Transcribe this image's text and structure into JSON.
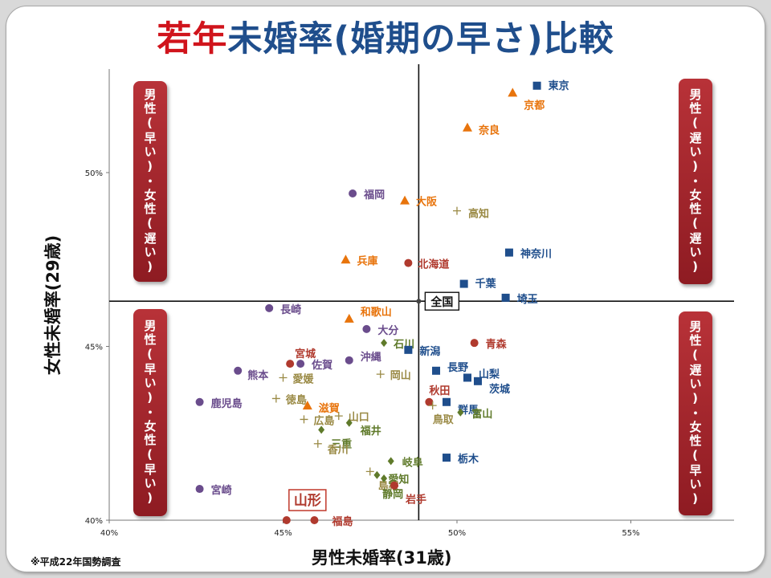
{
  "title": {
    "part1": "若年",
    "part2": "未婚率(婚期の早さ)比較"
  },
  "source": "※平成22年国勢調査",
  "quadrants": {
    "top_left": "男性(早い)・女性(遅い)",
    "top_right": "男性(遅い)・女性(遅い)",
    "bottom_left": "男性(早い)・女性(早い)",
    "bottom_right": "男性(遅い)・女性(早い)"
  },
  "highlight_label": "山形",
  "chart_data": {
    "type": "scatter",
    "xlabel": "男性未婚率(31歳)",
    "ylabel": "女性未婚率(29歳)",
    "xlim": [
      40,
      58
    ],
    "ylim": [
      40,
      53
    ],
    "x_ticks": [
      "40%",
      "45%",
      "50%",
      "55%"
    ],
    "y_ticks": [
      "40%",
      "45%",
      "50%"
    ],
    "reference": {
      "label": "全国",
      "x": 48.9,
      "y": 46.3
    },
    "colors": {
      "orange": "#e8740c",
      "navy": "#1f4e8c",
      "purple": "#6a4c8c",
      "darkred": "#b03a2e",
      "olive": "#5f7a2a",
      "khaki": "#9a8a45"
    },
    "points": [
      {
        "label": "東京",
        "x": 52.3,
        "y": 52.5,
        "marker": "square",
        "color": "navy"
      },
      {
        "label": "京都",
        "x": 51.6,
        "y": 52.3,
        "marker": "triangle",
        "color": "orange"
      },
      {
        "label": "奈良",
        "x": 50.3,
        "y": 51.3,
        "marker": "triangle",
        "color": "orange"
      },
      {
        "label": "福岡",
        "x": 47.0,
        "y": 49.4,
        "marker": "circle",
        "color": "purple"
      },
      {
        "label": "大阪",
        "x": 48.5,
        "y": 49.2,
        "marker": "triangle",
        "color": "orange"
      },
      {
        "label": "高知",
        "x": 50.0,
        "y": 48.9,
        "marker": "plus",
        "color": "khaki"
      },
      {
        "label": "神奈川",
        "x": 51.5,
        "y": 47.7,
        "marker": "square",
        "color": "navy"
      },
      {
        "label": "兵庫",
        "x": 46.8,
        "y": 47.5,
        "marker": "triangle",
        "color": "orange"
      },
      {
        "label": "北海道",
        "x": 48.6,
        "y": 47.4,
        "marker": "circle",
        "color": "darkred"
      },
      {
        "label": "千葉",
        "x": 50.2,
        "y": 46.8,
        "marker": "square",
        "color": "navy"
      },
      {
        "label": "埼玉",
        "x": 51.4,
        "y": 46.4,
        "marker": "square",
        "color": "navy"
      },
      {
        "label": "長崎",
        "x": 44.6,
        "y": 46.1,
        "marker": "circle",
        "color": "purple"
      },
      {
        "label": "和歌山",
        "x": 46.9,
        "y": 45.8,
        "marker": "triangle",
        "color": "orange"
      },
      {
        "label": "大分",
        "x": 47.4,
        "y": 45.5,
        "marker": "circle",
        "color": "purple"
      },
      {
        "label": "石川",
        "x": 47.9,
        "y": 45.1,
        "marker": "diamond",
        "color": "olive"
      },
      {
        "label": "新潟",
        "x": 48.6,
        "y": 44.9,
        "marker": "square",
        "color": "navy"
      },
      {
        "label": "青森",
        "x": 50.5,
        "y": 45.1,
        "marker": "circle",
        "color": "darkred"
      },
      {
        "label": "宮城",
        "x": 45.2,
        "y": 44.5,
        "marker": "circle",
        "color": "darkred"
      },
      {
        "label": "佐賀",
        "x": 45.5,
        "y": 44.5,
        "marker": "circle",
        "color": "purple"
      },
      {
        "label": "沖縄",
        "x": 46.9,
        "y": 44.6,
        "marker": "circle",
        "color": "purple"
      },
      {
        "label": "熊本",
        "x": 43.7,
        "y": 44.3,
        "marker": "circle",
        "color": "purple"
      },
      {
        "label": "愛媛",
        "x": 45.0,
        "y": 44.1,
        "marker": "plus",
        "color": "khaki"
      },
      {
        "label": "岡山",
        "x": 47.8,
        "y": 44.2,
        "marker": "plus",
        "color": "khaki"
      },
      {
        "label": "長野",
        "x": 49.4,
        "y": 44.3,
        "marker": "square",
        "color": "navy"
      },
      {
        "label": "山梨",
        "x": 50.3,
        "y": 44.1,
        "marker": "square",
        "color": "navy"
      },
      {
        "label": "茨城",
        "x": 50.6,
        "y": 44.0,
        "marker": "square",
        "color": "navy"
      },
      {
        "label": "鹿児島",
        "x": 42.6,
        "y": 43.4,
        "marker": "circle",
        "color": "purple"
      },
      {
        "label": "徳島",
        "x": 44.8,
        "y": 43.5,
        "marker": "plus",
        "color": "khaki"
      },
      {
        "label": "滋賀",
        "x": 45.7,
        "y": 43.3,
        "marker": "triangle",
        "color": "orange"
      },
      {
        "label": "秋田",
        "x": 49.2,
        "y": 43.4,
        "marker": "circle",
        "color": "darkred"
      },
      {
        "label": "群馬",
        "x": 49.7,
        "y": 43.4,
        "marker": "square",
        "color": "navy"
      },
      {
        "label": "鳥取",
        "x": 49.3,
        "y": 43.3,
        "marker": "plus",
        "color": "khaki"
      },
      {
        "label": "富山",
        "x": 50.1,
        "y": 43.1,
        "marker": "diamond",
        "color": "olive"
      },
      {
        "label": "広島",
        "x": 45.6,
        "y": 42.9,
        "marker": "plus",
        "color": "khaki"
      },
      {
        "label": "山口",
        "x": 46.6,
        "y": 43.0,
        "marker": "plus",
        "color": "khaki"
      },
      {
        "label": "三重",
        "x": 46.1,
        "y": 42.6,
        "marker": "diamond",
        "color": "olive"
      },
      {
        "label": "福井",
        "x": 46.9,
        "y": 42.8,
        "marker": "diamond",
        "color": "olive"
      },
      {
        "label": "香川",
        "x": 46.0,
        "y": 42.2,
        "marker": "plus",
        "color": "khaki"
      },
      {
        "label": "栃木",
        "x": 49.7,
        "y": 41.8,
        "marker": "square",
        "color": "navy"
      },
      {
        "label": "島根",
        "x": 47.5,
        "y": 41.4,
        "marker": "plus",
        "color": "khaki"
      },
      {
        "label": "岐阜",
        "x": 48.1,
        "y": 41.7,
        "marker": "diamond",
        "color": "olive"
      },
      {
        "label": "愛知",
        "x": 47.7,
        "y": 41.3,
        "marker": "diamond",
        "color": "olive"
      },
      {
        "label": "静岡",
        "x": 47.9,
        "y": 41.2,
        "marker": "diamond",
        "color": "olive"
      },
      {
        "label": "岩手",
        "x": 48.2,
        "y": 41.0,
        "marker": "circle",
        "color": "darkred"
      },
      {
        "label": "宮崎",
        "x": 42.6,
        "y": 40.9,
        "marker": "circle",
        "color": "purple"
      },
      {
        "label": "山形",
        "x": 45.1,
        "y": 40.0,
        "marker": "circle",
        "color": "darkred"
      },
      {
        "label": "福島",
        "x": 45.9,
        "y": 40.0,
        "marker": "circle",
        "color": "darkred"
      }
    ]
  }
}
